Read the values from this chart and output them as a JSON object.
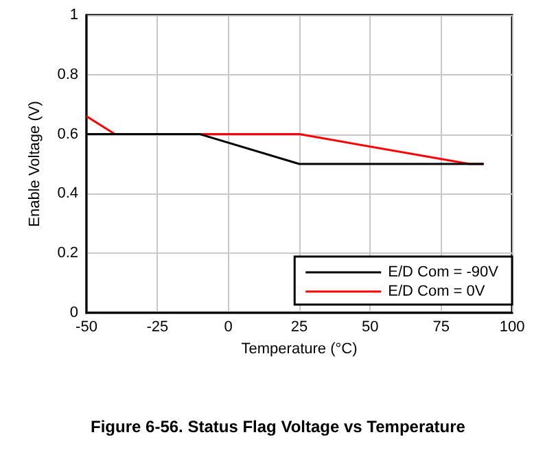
{
  "chart_data": {
    "type": "line",
    "title": "Figure 6-56. Status Flag Voltage vs Temperature",
    "xlabel": "Temperature (°C)",
    "ylabel": "Enable Voltage (V)",
    "xlim": [
      -50,
      100
    ],
    "xticks": [
      -50,
      -25,
      0,
      25,
      50,
      75,
      100
    ],
    "ylim": [
      0,
      1
    ],
    "yticks": [
      0,
      0.2,
      0.4,
      0.6,
      0.8,
      1
    ],
    "grid": true,
    "legend": "bottom right",
    "marker": "none",
    "line_style": "solid",
    "series": [
      {
        "name": "E/D Com = -90V",
        "color": "#000000",
        "x": [
          -50,
          -10,
          25,
          90
        ],
        "values": [
          0.6,
          0.6,
          0.5,
          0.5
        ]
      },
      {
        "name": "E/D Com = 0V",
        "color": "#ff0000",
        "x": [
          -50,
          -40,
          25,
          85,
          90
        ],
        "values": [
          0.66,
          0.6,
          0.6,
          0.5,
          0.5
        ]
      }
    ]
  }
}
